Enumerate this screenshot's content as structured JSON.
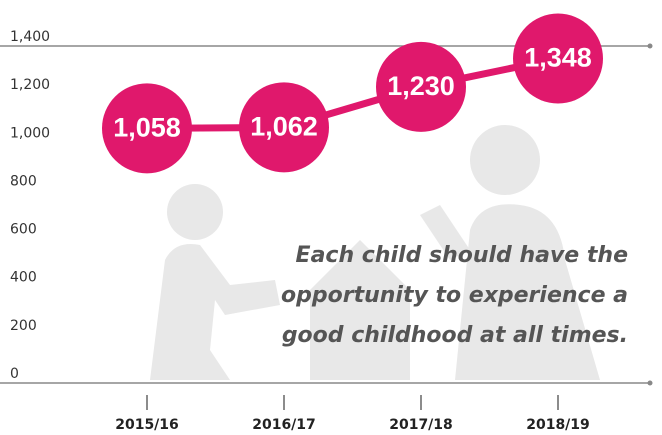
{
  "chart_data": {
    "type": "line",
    "categories": [
      "2015/16",
      "2016/17",
      "2017/18",
      "2018/19"
    ],
    "values": [
      1058,
      1062,
      1230,
      1348
    ],
    "value_labels": [
      "1,058",
      "1,062",
      "1,230",
      "1,348"
    ],
    "color": "#e0186c",
    "ylim": [
      0,
      1400
    ],
    "yticks": [
      0,
      200,
      400,
      600,
      800,
      {
        "value": 1000,
        "label": "1,000"
      },
      {
        "value": 1200,
        "label": "1,200"
      },
      {
        "value": 1400,
        "label": "1,400"
      }
    ],
    "annotation": [
      "Each child should have the",
      "opportunity to experience a",
      "good childhood at all times."
    ]
  }
}
